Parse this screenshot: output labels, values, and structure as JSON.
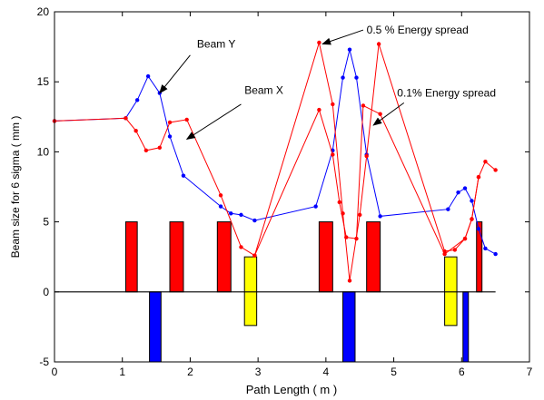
{
  "chart_data": {
    "type": "line",
    "xlabel": "Path Length ( m )",
    "ylabel": "Beam size for 6 sigma ( mm )",
    "xlim": [
      0,
      7
    ],
    "ylim": [
      -5,
      20
    ],
    "x_ticks": [
      "0",
      "1",
      "2",
      "3",
      "4",
      "5",
      "6",
      "7"
    ],
    "y_ticks": [
      "-5",
      "0",
      "5",
      "10",
      "15",
      "20"
    ],
    "x_tick_values": [
      0,
      1,
      2,
      3,
      4,
      5,
      6,
      7
    ],
    "y_tick_values": [
      -5,
      0,
      5,
      10,
      15,
      20
    ],
    "grid": false,
    "series": [
      {
        "name": "Beam Y",
        "color": "#0000ff",
        "x": [
          0.0,
          1.05,
          1.22,
          1.38,
          1.55,
          1.7,
          1.9,
          2.45,
          2.6,
          2.75,
          2.95,
          3.85,
          4.1,
          4.25,
          4.35,
          4.45,
          4.6,
          4.8,
          5.8,
          5.95,
          6.05,
          6.15,
          6.25,
          6.35,
          6.5
        ],
        "y": [
          12.2,
          12.4,
          13.7,
          15.4,
          14.2,
          11.1,
          8.3,
          6.1,
          5.6,
          5.5,
          5.1,
          6.1,
          10.1,
          15.3,
          17.3,
          15.3,
          9.8,
          5.4,
          5.9,
          7.1,
          7.4,
          6.5,
          4.5,
          3.1,
          2.7
        ]
      },
      {
        "name": "0.5 % Energy spread",
        "color": "#ff0000",
        "x": [
          0.0,
          1.05,
          1.2,
          1.35,
          1.55,
          1.7,
          1.95,
          2.45,
          2.75,
          2.95,
          3.9,
          4.1,
          4.25,
          4.35,
          4.5,
          4.6,
          4.78,
          5.75,
          5.9,
          6.05,
          6.15,
          6.25,
          6.35,
          6.5
        ],
        "y": [
          12.2,
          12.4,
          11.5,
          10.1,
          10.3,
          12.1,
          12.3,
          6.9,
          3.2,
          2.6,
          17.8,
          13.4,
          5.6,
          0.8,
          5.5,
          9.7,
          17.7,
          2.9,
          3.0,
          3.8,
          5.2,
          8.2,
          9.3,
          8.7
        ]
      },
      {
        "name": "0.1% Energy spread",
        "color": "#ff0000",
        "x": [
          2.95,
          3.9,
          4.1,
          4.2,
          4.3,
          4.45,
          4.55,
          4.8,
          5.75,
          6.05,
          6.15,
          6.25
        ],
        "y": [
          2.6,
          13.0,
          9.8,
          6.4,
          3.9,
          3.8,
          13.3,
          12.7,
          2.7,
          3.8,
          5.2,
          8.2
        ]
      }
    ],
    "elements": [
      {
        "name": "focusing-magnet",
        "color": "#ff0000",
        "x_start": 1.05,
        "x_end": 1.22,
        "y_bottom": 0,
        "y_top": 5
      },
      {
        "name": "focusing-magnet",
        "color": "#ff0000",
        "x_start": 1.7,
        "x_end": 1.9,
        "y_bottom": 0,
        "y_top": 5
      },
      {
        "name": "focusing-magnet",
        "color": "#ff0000",
        "x_start": 2.4,
        "x_end": 2.6,
        "y_bottom": 0,
        "y_top": 5
      },
      {
        "name": "focusing-magnet",
        "color": "#ff0000",
        "x_start": 3.9,
        "x_end": 4.1,
        "y_bottom": 0,
        "y_top": 5
      },
      {
        "name": "focusing-magnet",
        "color": "#ff0000",
        "x_start": 4.6,
        "x_end": 4.8,
        "y_bottom": 0,
        "y_top": 5
      },
      {
        "name": "focusing-magnet",
        "color": "#ff0000",
        "x_start": 6.22,
        "x_end": 6.3,
        "y_bottom": 0,
        "y_top": 5
      },
      {
        "name": "defocusing-magnet",
        "color": "#0000ff",
        "x_start": 1.4,
        "x_end": 1.57,
        "y_bottom": -5,
        "y_top": 0
      },
      {
        "name": "defocusing-magnet",
        "color": "#0000ff",
        "x_start": 4.25,
        "x_end": 4.43,
        "y_bottom": -5,
        "y_top": 0
      },
      {
        "name": "defocusing-magnet",
        "color": "#0000ff",
        "x_start": 6.02,
        "x_end": 6.1,
        "y_bottom": -5,
        "y_top": 0
      },
      {
        "name": "yellow-element",
        "color": "#ffff00",
        "x_start": 2.8,
        "x_end": 2.98,
        "y_bottom": -2.4,
        "y_top": 2.5
      },
      {
        "name": "yellow-element",
        "color": "#ffff00",
        "x_start": 5.75,
        "x_end": 5.93,
        "y_bottom": -2.4,
        "y_top": 2.5
      }
    ],
    "annotations": [
      {
        "text": "Beam Y",
        "label_x": 2.1,
        "label_y": 17.7,
        "arrow_from": [
          2.0,
          16.9
        ],
        "arrow_to": [
          1.55,
          14.2
        ]
      },
      {
        "text": "Beam X",
        "label_x": 2.8,
        "label_y": 14.4,
        "arrow_from": [
          2.75,
          13.4
        ],
        "arrow_to": [
          1.95,
          10.9
        ]
      },
      {
        "text": "0.5 % Energy spread",
        "label_x": 4.6,
        "label_y": 18.7,
        "arrow_from": [
          4.55,
          18.7
        ],
        "arrow_to": [
          3.95,
          17.7
        ]
      },
      {
        "text": "0.1% Energy spread",
        "label_x": 5.05,
        "label_y": 14.2,
        "arrow_from": [
          5.15,
          13.5
        ],
        "arrow_to": [
          4.7,
          11.9
        ]
      }
    ]
  }
}
